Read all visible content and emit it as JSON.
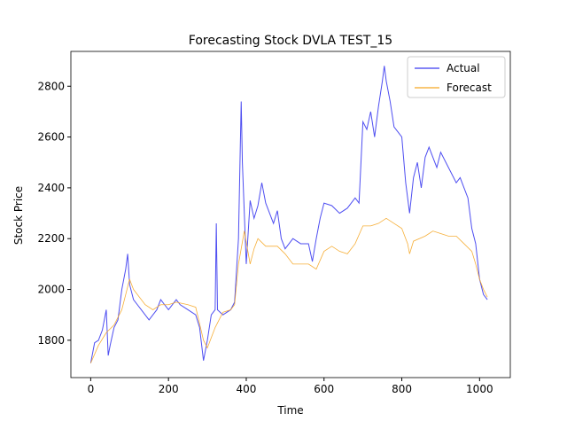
{
  "chart_data": {
    "type": "line",
    "title": "Forecasting Stock DVLA TEST_15",
    "xlabel": "Time",
    "ylabel": "Stock Price",
    "xlim": [
      -51,
      1079
    ],
    "ylim": [
      1653,
      2937
    ],
    "xticks": [
      0,
      200,
      400,
      600,
      800,
      1000
    ],
    "yticks": [
      1800,
      2000,
      2200,
      2400,
      2600,
      2800
    ],
    "legend": "upper right",
    "grid": false,
    "series": [
      {
        "name": "Actual",
        "color": "#3b3bf0",
        "x": [
          0,
          10,
          20,
          30,
          40,
          45,
          50,
          60,
          70,
          80,
          90,
          95,
          100,
          110,
          120,
          130,
          140,
          150,
          160,
          170,
          180,
          190,
          200,
          220,
          230,
          250,
          270,
          280,
          290,
          300,
          310,
          320,
          323,
          326,
          340,
          360,
          370,
          380,
          387,
          390,
          395,
          400,
          410,
          420,
          430,
          440,
          450,
          460,
          470,
          480,
          490,
          500,
          520,
          540,
          560,
          570,
          580,
          590,
          600,
          620,
          640,
          660,
          680,
          690,
          700,
          710,
          720,
          730,
          740,
          750,
          755,
          760,
          770,
          780,
          790,
          800,
          810,
          820,
          830,
          840,
          850,
          860,
          870,
          880,
          890,
          900,
          920,
          940,
          950,
          960,
          970,
          980,
          990,
          1000,
          1010,
          1020
        ],
        "values": [
          1710,
          1790,
          1800,
          1840,
          1920,
          1740,
          1780,
          1850,
          1880,
          2000,
          2080,
          2140,
          2020,
          1960,
          1940,
          1920,
          1900,
          1880,
          1900,
          1920,
          1960,
          1940,
          1920,
          1960,
          1940,
          1920,
          1900,
          1850,
          1720,
          1800,
          1900,
          1920,
          2260,
          1920,
          1900,
          1920,
          1950,
          2200,
          2740,
          2500,
          2300,
          2100,
          2350,
          2280,
          2330,
          2420,
          2340,
          2300,
          2260,
          2310,
          2200,
          2160,
          2200,
          2180,
          2180,
          2110,
          2200,
          2280,
          2340,
          2330,
          2300,
          2320,
          2360,
          2340,
          2660,
          2630,
          2700,
          2600,
          2720,
          2820,
          2880,
          2820,
          2740,
          2640,
          2620,
          2600,
          2420,
          2300,
          2440,
          2500,
          2400,
          2520,
          2560,
          2520,
          2480,
          2540,
          2480,
          2420,
          2440,
          2400,
          2360,
          2240,
          2180,
          2040,
          1980,
          1960
        ]
      },
      {
        "name": "Forecast",
        "color": "#f5a623",
        "x": [
          0,
          20,
          40,
          60,
          80,
          100,
          110,
          120,
          140,
          160,
          180,
          200,
          220,
          250,
          270,
          290,
          300,
          320,
          340,
          360,
          370,
          380,
          395,
          410,
          420,
          430,
          450,
          480,
          500,
          520,
          560,
          580,
          600,
          620,
          640,
          660,
          680,
          700,
          720,
          740,
          760,
          780,
          800,
          815,
          820,
          830,
          860,
          880,
          900,
          920,
          940,
          960,
          980,
          990,
          1000,
          1010,
          1020
        ],
        "values": [
          1710,
          1780,
          1830,
          1860,
          1920,
          2040,
          2000,
          1980,
          1940,
          1920,
          1940,
          1940,
          1950,
          1940,
          1930,
          1800,
          1770,
          1850,
          1910,
          1920,
          1940,
          2100,
          2230,
          2100,
          2160,
          2200,
          2170,
          2170,
          2140,
          2100,
          2100,
          2080,
          2150,
          2170,
          2150,
          2140,
          2180,
          2250,
          2250,
          2260,
          2280,
          2260,
          2240,
          2180,
          2140,
          2190,
          2210,
          2230,
          2220,
          2210,
          2210,
          2180,
          2150,
          2100,
          2040,
          2000,
          1970
        ]
      }
    ]
  }
}
